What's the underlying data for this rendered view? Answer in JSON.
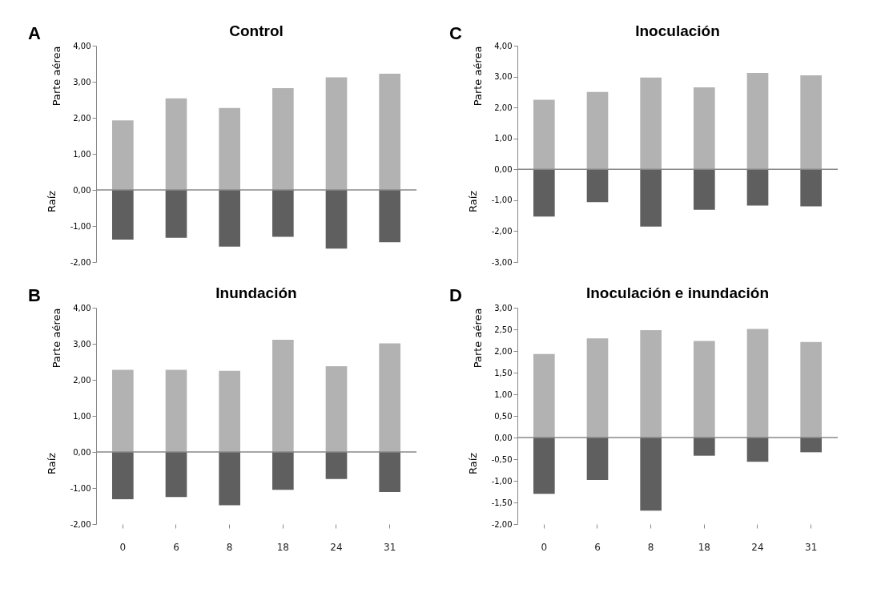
{
  "chart_data": [
    {
      "type": "bar",
      "title": "Control",
      "ref_lines": [
        {
          "axis": "y",
          "value": 0,
          "color": "#888888"
        }
      ],
      "ylabel": "Parte aérea",
      "annotations": [
        "A",
        "Raíz"
      ],
      "stacked": true,
      "legend": false,
      "grid": false,
      "tick_labels": "y",
      "categories": [
        "0",
        "6",
        "8",
        "18",
        "24",
        "31"
      ],
      "series": [
        {
          "color": "#b2b2b2",
          "values": [
            1.93,
            2.54,
            2.27,
            2.82,
            3.12,
            3.22
          ]
        },
        {
          "color": "#5f5f5f",
          "values": [
            -1.38,
            -1.33,
            -1.57,
            -1.3,
            -1.63,
            -1.45
          ]
        }
      ],
      "ylim": [
        -2,
        4
      ],
      "yticks": [
        {
          "value": -2,
          "label": "-2,00"
        },
        {
          "value": -1,
          "label": "-1,00"
        },
        {
          "value": 0,
          "label": "0,00"
        },
        {
          "value": 1,
          "label": "1,00"
        },
        {
          "value": 2,
          "label": "2,00"
        },
        {
          "value": 3,
          "label": "3,00"
        },
        {
          "value": 4,
          "label": "4,00"
        }
      ]
    },
    {
      "type": "bar",
      "title": "Inoculación",
      "ref_lines": [
        {
          "axis": "y",
          "value": 0,
          "color": "#888888"
        }
      ],
      "ylabel": "Parte aérea",
      "annotations": [
        "C",
        "Raíz"
      ],
      "stacked": true,
      "legend": false,
      "grid": false,
      "tick_labels": "y",
      "categories": [
        "0",
        "6",
        "8",
        "18",
        "24",
        "31"
      ],
      "series": [
        {
          "color": "#b2b2b2",
          "values": [
            2.25,
            2.5,
            2.97,
            2.65,
            3.12,
            3.04
          ]
        },
        {
          "color": "#5f5f5f",
          "values": [
            -1.53,
            -1.06,
            -1.85,
            -1.31,
            -1.17,
            -1.2
          ]
        }
      ],
      "ylim": [
        -3,
        4
      ],
      "yticks": [
        {
          "value": -3,
          "label": "-3,00"
        },
        {
          "value": -2,
          "label": "-2,00"
        },
        {
          "value": -1,
          "label": "-1,00"
        },
        {
          "value": 0,
          "label": "0,00"
        },
        {
          "value": 1,
          "label": "1,00"
        },
        {
          "value": 2,
          "label": "2,00"
        },
        {
          "value": 3,
          "label": "3,00"
        },
        {
          "value": 4,
          "label": "4,00"
        }
      ]
    },
    {
      "type": "bar",
      "title": "Inundación",
      "ref_lines": [
        {
          "axis": "y",
          "value": 0,
          "color": "#888888"
        }
      ],
      "ylabel": "Parte aérea",
      "annotations": [
        "B",
        "Raíz"
      ],
      "stacked": true,
      "legend": false,
      "grid": false,
      "categories": [
        "0",
        "6",
        "8",
        "18",
        "24",
        "31"
      ],
      "series": [
        {
          "color": "#b2b2b2",
          "values": [
            2.28,
            2.28,
            2.25,
            3.11,
            2.38,
            3.01
          ]
        },
        {
          "color": "#5f5f5f",
          "values": [
            -1.31,
            -1.25,
            -1.48,
            -1.05,
            -0.75,
            -1.11
          ]
        }
      ],
      "ylim": [
        -2,
        4
      ],
      "yticks": [
        {
          "value": -2,
          "label": "-2,00"
        },
        {
          "value": -1,
          "label": "-1,00"
        },
        {
          "value": 0,
          "label": "0,00"
        },
        {
          "value": 1,
          "label": "1,00"
        },
        {
          "value": 2,
          "label": "2,00"
        },
        {
          "value": 3,
          "label": "3,00"
        },
        {
          "value": 4,
          "label": "4,00"
        }
      ]
    },
    {
      "type": "bar",
      "title": "Inoculación e inundación",
      "ref_lines": [
        {
          "axis": "y",
          "value": 0,
          "color": "#888888"
        }
      ],
      "ylabel": "Parte aérea",
      "annotations": [
        "D",
        "Raíz"
      ],
      "stacked": true,
      "legend": false,
      "grid": false,
      "categories": [
        "0",
        "6",
        "8",
        "18",
        "24",
        "31"
      ],
      "series": [
        {
          "color": "#b2b2b2",
          "values": [
            1.93,
            2.29,
            2.48,
            2.23,
            2.51,
            2.21
          ]
        },
        {
          "color": "#5f5f5f",
          "values": [
            -1.3,
            -0.98,
            -1.69,
            -0.42,
            -0.56,
            -0.34
          ]
        }
      ],
      "ylim": [
        -2,
        3
      ],
      "yticks": [
        {
          "value": -2,
          "label": "-2,00"
        },
        {
          "value": -1.5,
          "label": "-1,50"
        },
        {
          "value": -1,
          "label": "-1,00"
        },
        {
          "value": -0.5,
          "label": "-0,50"
        },
        {
          "value": 0,
          "label": "0,00"
        },
        {
          "value": 0.5,
          "label": "0,50"
        },
        {
          "value": 1,
          "label": "1,00"
        },
        {
          "value": 1.5,
          "label": "1,50"
        },
        {
          "value": 2,
          "label": "2,00"
        },
        {
          "value": 2.5,
          "label": "2,50"
        },
        {
          "value": 3,
          "label": "3,00"
        }
      ]
    }
  ]
}
